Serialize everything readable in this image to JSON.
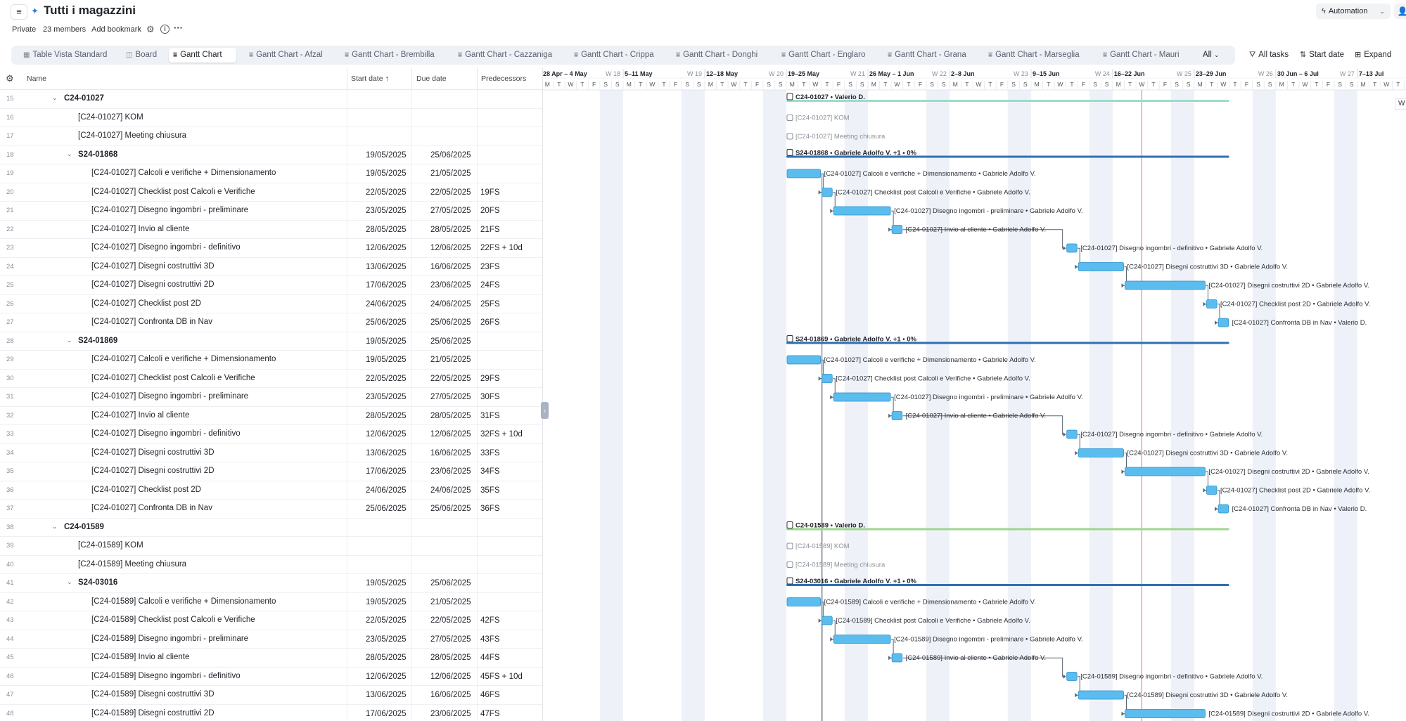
{
  "header": {
    "title": "Tutti i magazzini",
    "privacy": "Private",
    "members": "23 members",
    "bookmark": "Add bookmark",
    "automation_label": "Automation"
  },
  "tabs": [
    {
      "label": "Table Vista Standard",
      "icon": "table-icon",
      "active": false
    },
    {
      "label": "Board",
      "icon": "board-icon",
      "active": false
    },
    {
      "label": "Gantt Chart",
      "icon": "gantt-icon",
      "active": true
    },
    {
      "label": "Gantt Chart - Afzal",
      "icon": "gantt-icon",
      "active": false
    },
    {
      "label": "Gantt Chart - Brembilla",
      "icon": "gantt-icon",
      "active": false
    },
    {
      "label": "Gantt Chart - Cazzaniga",
      "icon": "gantt-icon",
      "active": false
    },
    {
      "label": "Gantt Chart - Crippa",
      "icon": "gantt-icon",
      "active": false
    },
    {
      "label": "Gantt Chart - Donghi",
      "icon": "gantt-icon",
      "active": false
    },
    {
      "label": "Gantt Chart - Englaro",
      "icon": "gantt-icon",
      "active": false
    },
    {
      "label": "Gantt Chart - Grana",
      "icon": "gantt-icon",
      "active": false
    },
    {
      "label": "Gantt Chart - Marseglia",
      "icon": "gantt-icon",
      "active": false
    },
    {
      "label": "Gantt Chart - Mauri",
      "icon": "gantt-icon",
      "active": false
    }
  ],
  "tab_all": "All",
  "toolbar": {
    "filter_label": "All tasks",
    "sort_label": "Start date",
    "expand_label": "Expand"
  },
  "columns": {
    "name": "Name",
    "start": "Start date",
    "due": "Due date",
    "pred": "Predecessors"
  },
  "rows": [
    {
      "n": "15",
      "name": "C24-01027",
      "level": 1,
      "group": true,
      "bold": true,
      "start": "",
      "due": "",
      "pred": ""
    },
    {
      "n": "16",
      "name": "[C24-01027] KOM",
      "level": 2,
      "group": false,
      "bold": false,
      "start": "",
      "due": "",
      "pred": ""
    },
    {
      "n": "17",
      "name": "[C24-01027] Meeting chiusura",
      "level": 2,
      "group": false,
      "bold": false,
      "start": "",
      "due": "",
      "pred": ""
    },
    {
      "n": "18",
      "name": "S24-01868",
      "level": 2,
      "group": true,
      "bold": true,
      "start": "19/05/2025",
      "due": "25/06/2025",
      "pred": ""
    },
    {
      "n": "19",
      "name": "[C24-01027] Calcoli e verifiche + Dimensionamento",
      "level": 3,
      "group": false,
      "bold": false,
      "start": "19/05/2025",
      "due": "21/05/2025",
      "pred": ""
    },
    {
      "n": "20",
      "name": "[C24-01027] Checklist post Calcoli e Verifiche",
      "level": 3,
      "group": false,
      "bold": false,
      "start": "22/05/2025",
      "due": "22/05/2025",
      "pred": "19FS"
    },
    {
      "n": "21",
      "name": "[C24-01027] Disegno ingombri - preliminare",
      "level": 3,
      "group": false,
      "bold": false,
      "start": "23/05/2025",
      "due": "27/05/2025",
      "pred": "20FS"
    },
    {
      "n": "22",
      "name": "[C24-01027] Invio al cliente",
      "level": 3,
      "group": false,
      "bold": false,
      "start": "28/05/2025",
      "due": "28/05/2025",
      "pred": "21FS"
    },
    {
      "n": "23",
      "name": "[C24-01027] Disegno ingombri - definitivo",
      "level": 3,
      "group": false,
      "bold": false,
      "start": "12/06/2025",
      "due": "12/06/2025",
      "pred": "22FS + 10d"
    },
    {
      "n": "24",
      "name": "[C24-01027] Disegni costruttivi 3D",
      "level": 3,
      "group": false,
      "bold": false,
      "start": "13/06/2025",
      "due": "16/06/2025",
      "pred": "23FS"
    },
    {
      "n": "25",
      "name": "[C24-01027] Disegni costruttivi 2D",
      "level": 3,
      "group": false,
      "bold": false,
      "start": "17/06/2025",
      "due": "23/06/2025",
      "pred": "24FS"
    },
    {
      "n": "26",
      "name": "[C24-01027] Checklist post 2D",
      "level": 3,
      "group": false,
      "bold": false,
      "start": "24/06/2025",
      "due": "24/06/2025",
      "pred": "25FS"
    },
    {
      "n": "27",
      "name": "[C24-01027] Confronta DB in Nav",
      "level": 3,
      "group": false,
      "bold": false,
      "start": "25/06/2025",
      "due": "25/06/2025",
      "pred": "26FS"
    },
    {
      "n": "28",
      "name": "S24-01869",
      "level": 2,
      "group": true,
      "bold": true,
      "start": "19/05/2025",
      "due": "25/06/2025",
      "pred": ""
    },
    {
      "n": "29",
      "name": "[C24-01027] Calcoli e verifiche + Dimensionamento",
      "level": 3,
      "group": false,
      "bold": false,
      "start": "19/05/2025",
      "due": "21/05/2025",
      "pred": ""
    },
    {
      "n": "30",
      "name": "[C24-01027] Checklist post Calcoli e Verifiche",
      "level": 3,
      "group": false,
      "bold": false,
      "start": "22/05/2025",
      "due": "22/05/2025",
      "pred": "29FS"
    },
    {
      "n": "31",
      "name": "[C24-01027] Disegno ingombri - preliminare",
      "level": 3,
      "group": false,
      "bold": false,
      "start": "23/05/2025",
      "due": "27/05/2025",
      "pred": "30FS"
    },
    {
      "n": "32",
      "name": "[C24-01027] Invio al cliente",
      "level": 3,
      "group": false,
      "bold": false,
      "start": "28/05/2025",
      "due": "28/05/2025",
      "pred": "31FS"
    },
    {
      "n": "33",
      "name": "[C24-01027] Disegno ingombri - definitivo",
      "level": 3,
      "group": false,
      "bold": false,
      "start": "12/06/2025",
      "due": "12/06/2025",
      "pred": "32FS + 10d"
    },
    {
      "n": "34",
      "name": "[C24-01027] Disegni costruttivi 3D",
      "level": 3,
      "group": false,
      "bold": false,
      "start": "13/06/2025",
      "due": "16/06/2025",
      "pred": "33FS"
    },
    {
      "n": "35",
      "name": "[C24-01027] Disegni costruttivi 2D",
      "level": 3,
      "group": false,
      "bold": false,
      "start": "17/06/2025",
      "due": "23/06/2025",
      "pred": "34FS"
    },
    {
      "n": "36",
      "name": "[C24-01027] Checklist post 2D",
      "level": 3,
      "group": false,
      "bold": false,
      "start": "24/06/2025",
      "due": "24/06/2025",
      "pred": "35FS"
    },
    {
      "n": "37",
      "name": "[C24-01027] Confronta DB in Nav",
      "level": 3,
      "group": false,
      "bold": false,
      "start": "25/06/2025",
      "due": "25/06/2025",
      "pred": "36FS"
    },
    {
      "n": "38",
      "name": "C24-01589",
      "level": 1,
      "group": true,
      "bold": true,
      "start": "",
      "due": "",
      "pred": ""
    },
    {
      "n": "39",
      "name": "[C24-01589] KOM",
      "level": 2,
      "group": false,
      "bold": false,
      "start": "",
      "due": "",
      "pred": ""
    },
    {
      "n": "40",
      "name": "[C24-01589] Meeting chiusura",
      "level": 2,
      "group": false,
      "bold": false,
      "start": "",
      "due": "",
      "pred": ""
    },
    {
      "n": "41",
      "name": "S24-03016",
      "level": 2,
      "group": true,
      "bold": true,
      "start": "19/05/2025",
      "due": "25/06/2025",
      "pred": ""
    },
    {
      "n": "42",
      "name": "[C24-01589] Calcoli e verifiche + Dimensionamento",
      "level": 3,
      "group": false,
      "bold": false,
      "start": "19/05/2025",
      "due": "21/05/2025",
      "pred": ""
    },
    {
      "n": "43",
      "name": "[C24-01589] Checklist post Calcoli e Verifiche",
      "level": 3,
      "group": false,
      "bold": false,
      "start": "22/05/2025",
      "due": "22/05/2025",
      "pred": "42FS"
    },
    {
      "n": "44",
      "name": "[C24-01589] Disegno ingombri - preliminare",
      "level": 3,
      "group": false,
      "bold": false,
      "start": "23/05/2025",
      "due": "27/05/2025",
      "pred": "43FS"
    },
    {
      "n": "45",
      "name": "[C24-01589] Invio al cliente",
      "level": 3,
      "group": false,
      "bold": false,
      "start": "28/05/2025",
      "due": "28/05/2025",
      "pred": "44FS"
    },
    {
      "n": "46",
      "name": "[C24-01589] Disegno ingombri - definitivo",
      "level": 3,
      "group": false,
      "bold": false,
      "start": "12/06/2025",
      "due": "12/06/2025",
      "pred": "45FS + 10d"
    },
    {
      "n": "47",
      "name": "[C24-01589] Disegni costruttivi 3D",
      "level": 3,
      "group": false,
      "bold": false,
      "start": "13/06/2025",
      "due": "16/06/2025",
      "pred": "46FS"
    },
    {
      "n": "48",
      "name": "[C24-01589] Disegni costruttivi 2D",
      "level": 3,
      "group": false,
      "bold": false,
      "start": "17/06/2025",
      "due": "23/06/2025",
      "pred": "47FS"
    }
  ],
  "timeline": {
    "first_date": "2025-04-28",
    "day_letters": [
      "M",
      "T",
      "W",
      "T",
      "F",
      "S",
      "S"
    ],
    "today": "2025-06-18",
    "week_labels": [
      {
        "label": "28 Apr – 4 May",
        "date": "2025-04-28"
      },
      {
        "label": "W 18",
        "date": "2025-04-28",
        "muted": true
      },
      {
        "label": "5–11 May",
        "date": "2025-05-05"
      },
      {
        "label": "W 19",
        "date": "2025-05-05",
        "muted": true
      },
      {
        "label": "12–18 May",
        "date": "2025-05-12"
      },
      {
        "label": "W 20",
        "date": "2025-05-12",
        "muted": true
      },
      {
        "label": "19–25 May",
        "date": "2025-05-19"
      },
      {
        "label": "W 21",
        "date": "2025-05-19",
        "muted": true
      },
      {
        "label": "26 May – 1 Jun",
        "date": "2025-05-26"
      },
      {
        "label": "W 22",
        "date": "2025-05-26",
        "muted": true
      },
      {
        "label": "2–8 Jun",
        "date": "2025-06-02"
      },
      {
        "label": "W 23",
        "date": "2025-06-02",
        "muted": true
      },
      {
        "label": "9–15 Jun",
        "date": "2025-06-09"
      },
      {
        "label": "W 24",
        "date": "2025-06-09",
        "muted": true
      },
      {
        "label": "16–22 Jun",
        "date": "2025-06-16"
      },
      {
        "label": "W 25",
        "date": "2025-06-16",
        "muted": true
      },
      {
        "label": "23–29 Jun",
        "date": "2025-06-23"
      },
      {
        "label": "W 26",
        "date": "2025-06-23",
        "muted": true
      },
      {
        "label": "30 Jun – 6 Jul",
        "date": "2025-06-30"
      },
      {
        "label": "W 27",
        "date": "2025-06-30",
        "muted": true
      },
      {
        "label": "7–13 Jul",
        "date": "2025-07-07"
      }
    ],
    "corner_label": "W",
    "colors": {
      "task": "#5bbcee",
      "task_border": "#2a8fd0",
      "summary": "#2f6fb5",
      "project_teal": "#9bdcc8",
      "project_green": "#9ed68f",
      "today": "#e36f7d",
      "weekend": "#eef2f8",
      "link": "#5a6472"
    }
  },
  "bars": [
    {
      "row": 0,
      "kind": "project",
      "color": "teal",
      "start": "2025-05-19",
      "end": "2025-06-25",
      "label": "C24-01027 • Valerio D."
    },
    {
      "row": 1,
      "kind": "milestone",
      "start": "2025-05-19",
      "label": "[C24-01027] KOM"
    },
    {
      "row": 2,
      "kind": "milestone",
      "start": "2025-05-19",
      "label": "[C24-01027] Meeting chiusura"
    },
    {
      "row": 3,
      "kind": "summary",
      "start": "2025-05-19",
      "end": "2025-06-25",
      "label": "S24-01868 • Gabriele Adolfo V. +1 • 0%"
    },
    {
      "row": 4,
      "kind": "task",
      "start": "2025-05-19",
      "end": "2025-05-21",
      "label": "[C24-01027] Calcoli e verifiche + Dimensionamento • Gabriele Adolfo V."
    },
    {
      "row": 5,
      "kind": "task",
      "start": "2025-05-22",
      "end": "2025-05-22",
      "label": "[C24-01027] Checklist post Calcoli e Verifiche • Gabriele Adolfo V."
    },
    {
      "row": 6,
      "kind": "task",
      "start": "2025-05-23",
      "end": "2025-05-27",
      "label": "[C24-01027] Disegno ingombri - preliminare • Gabriele Adolfo V."
    },
    {
      "row": 7,
      "kind": "task",
      "start": "2025-05-28",
      "end": "2025-05-28",
      "label": "[C24-01027] Invio al cliente • Gabriele Adolfo V."
    },
    {
      "row": 8,
      "kind": "task",
      "start": "2025-06-12",
      "end": "2025-06-12",
      "label": "[C24-01027] Disegno ingombri - definitivo • Gabriele Adolfo V."
    },
    {
      "row": 9,
      "kind": "task",
      "start": "2025-06-13",
      "end": "2025-06-16",
      "label": "[C24-01027] Disegni costruttivi 3D • Gabriele Adolfo V."
    },
    {
      "row": 10,
      "kind": "task",
      "start": "2025-06-17",
      "end": "2025-06-23",
      "label": "[C24-01027] Disegni costruttivi 2D • Gabriele Adolfo V."
    },
    {
      "row": 11,
      "kind": "task",
      "start": "2025-06-24",
      "end": "2025-06-24",
      "label": "[C24-01027] Checklist post 2D • Gabriele Adolfo V."
    },
    {
      "row": 12,
      "kind": "task",
      "start": "2025-06-25",
      "end": "2025-06-25",
      "label": "[C24-01027] Confronta DB in Nav • Valerio D."
    },
    {
      "row": 13,
      "kind": "summary",
      "start": "2025-05-19",
      "end": "2025-06-25",
      "label": "S24-01869 • Gabriele Adolfo V. +1 • 0%"
    },
    {
      "row": 14,
      "kind": "task",
      "start": "2025-05-19",
      "end": "2025-05-21",
      "label": "[C24-01027] Calcoli e verifiche + Dimensionamento • Gabriele Adolfo V."
    },
    {
      "row": 15,
      "kind": "task",
      "start": "2025-05-22",
      "end": "2025-05-22",
      "label": "[C24-01027] Checklist post Calcoli e Verifiche • Gabriele Adolfo V."
    },
    {
      "row": 16,
      "kind": "task",
      "start": "2025-05-23",
      "end": "2025-05-27",
      "label": "[C24-01027] Disegno ingombri - preliminare • Gabriele Adolfo V."
    },
    {
      "row": 17,
      "kind": "task",
      "start": "2025-05-28",
      "end": "2025-05-28",
      "label": "[C24-01027] Invio al cliente • Gabriele Adolfo V."
    },
    {
      "row": 18,
      "kind": "task",
      "start": "2025-06-12",
      "end": "2025-06-12",
      "label": "[C24-01027] Disegno ingombri - definitivo • Gabriele Adolfo V."
    },
    {
      "row": 19,
      "kind": "task",
      "start": "2025-06-13",
      "end": "2025-06-16",
      "label": "[C24-01027] Disegni costruttivi 3D • Gabriele Adolfo V."
    },
    {
      "row": 20,
      "kind": "task",
      "start": "2025-06-17",
      "end": "2025-06-23",
      "label": "[C24-01027] Disegni costruttivi 2D • Gabriele Adolfo V."
    },
    {
      "row": 21,
      "kind": "task",
      "start": "2025-06-24",
      "end": "2025-06-24",
      "label": "[C24-01027] Checklist post 2D • Gabriele Adolfo V."
    },
    {
      "row": 22,
      "kind": "task",
      "start": "2025-06-25",
      "end": "2025-06-25",
      "label": "[C24-01027] Confronta DB in Nav • Valerio D."
    },
    {
      "row": 23,
      "kind": "project",
      "color": "green",
      "start": "2025-05-19",
      "end": "2025-06-25",
      "label": "C24-01589 • Valerio D."
    },
    {
      "row": 24,
      "kind": "milestone",
      "start": "2025-05-19",
      "label": "[C24-01589] KOM"
    },
    {
      "row": 25,
      "kind": "milestone",
      "start": "2025-05-19",
      "label": "[C24-01589] Meeting chiusura"
    },
    {
      "row": 26,
      "kind": "summary",
      "start": "2025-05-19",
      "end": "2025-06-25",
      "label": "S24-03016 • Gabriele Adolfo V. +1 • 0%"
    },
    {
      "row": 27,
      "kind": "task",
      "start": "2025-05-19",
      "end": "2025-05-21",
      "label": "[C24-01589] Calcoli e verifiche + Dimensionamento • Gabriele Adolfo V."
    },
    {
      "row": 28,
      "kind": "task",
      "start": "2025-05-22",
      "end": "2025-05-22",
      "label": "[C24-01589] Checklist post Calcoli e Verifiche • Gabriele Adolfo V."
    },
    {
      "row": 29,
      "kind": "task",
      "start": "2025-05-23",
      "end": "2025-05-27",
      "label": "[C24-01589] Disegno ingombri - preliminare • Gabriele Adolfo V."
    },
    {
      "row": 30,
      "kind": "task",
      "start": "2025-05-28",
      "end": "2025-05-28",
      "label": "[C24-01589] Invio al cliente • Gabriele Adolfo V."
    },
    {
      "row": 31,
      "kind": "task",
      "start": "2025-06-12",
      "end": "2025-06-12",
      "label": "[C24-01589] Disegno ingombri - definitivo • Gabriele Adolfo V."
    },
    {
      "row": 32,
      "kind": "task",
      "start": "2025-06-13",
      "end": "2025-06-16",
      "label": "[C24-01589] Disegni costruttivi 3D • Gabriele Adolfo V."
    },
    {
      "row": 33,
      "kind": "task",
      "start": "2025-06-17",
      "end": "2025-06-23",
      "label": "[C24-01589] Disegni costruttivi 2D • Gabriele Adolfo V."
    }
  ],
  "links": [
    [
      4,
      5
    ],
    [
      5,
      6
    ],
    [
      6,
      7
    ],
    [
      7,
      8
    ],
    [
      8,
      9
    ],
    [
      9,
      10
    ],
    [
      10,
      11
    ],
    [
      11,
      12
    ],
    [
      14,
      15
    ],
    [
      15,
      16
    ],
    [
      16,
      17
    ],
    [
      17,
      18
    ],
    [
      18,
      19
    ],
    [
      19,
      20
    ],
    [
      20,
      21
    ],
    [
      21,
      22
    ],
    [
      27,
      28
    ],
    [
      28,
      29
    ],
    [
      29,
      30
    ],
    [
      30,
      31
    ],
    [
      31,
      32
    ],
    [
      32,
      33
    ]
  ]
}
